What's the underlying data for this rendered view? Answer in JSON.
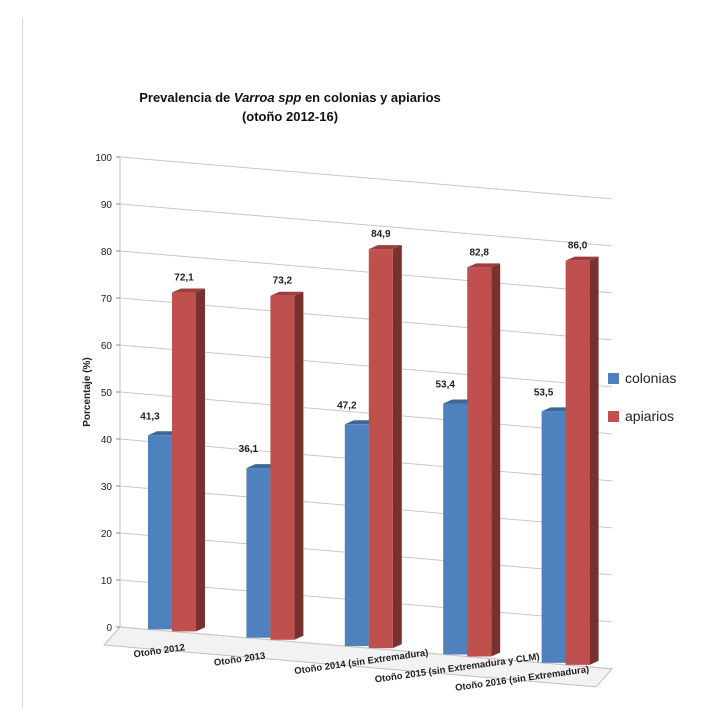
{
  "chart_data": {
    "type": "bar",
    "title": {
      "prefix": "Prevalencia de ",
      "italic": "Varroa spp",
      "suffix": " en colonias y apiarios",
      "line2": "(otoño 2012-16)"
    },
    "ylabel": "Porcentaje (%)",
    "xlabel": "",
    "ylim": [
      0,
      100
    ],
    "yticks": [
      0,
      10,
      20,
      30,
      40,
      50,
      60,
      70,
      80,
      90,
      100
    ],
    "grid": true,
    "legend_position": "right",
    "categories": [
      "Otoño 2012",
      "Otoño 2013",
      "Otoño 2014 (sin Extremadura)",
      "Otoño 2015 (sin Extremadura y CLM)",
      "Otoño 2016 (sin Extremadura)"
    ],
    "series": [
      {
        "name": "colonias",
        "color": "#4f81bd",
        "values": [
          41.3,
          36.1,
          47.2,
          53.4,
          53.5
        ],
        "labels": [
          "41,3",
          "36,1",
          "47,2",
          "53,4",
          "53,5"
        ]
      },
      {
        "name": "apiarios",
        "color": "#c0504d",
        "values": [
          72.1,
          73.2,
          84.9,
          82.8,
          86.0
        ],
        "labels": [
          "72,1",
          "73,2",
          "84,9",
          "82,8",
          "86,0"
        ]
      }
    ]
  }
}
